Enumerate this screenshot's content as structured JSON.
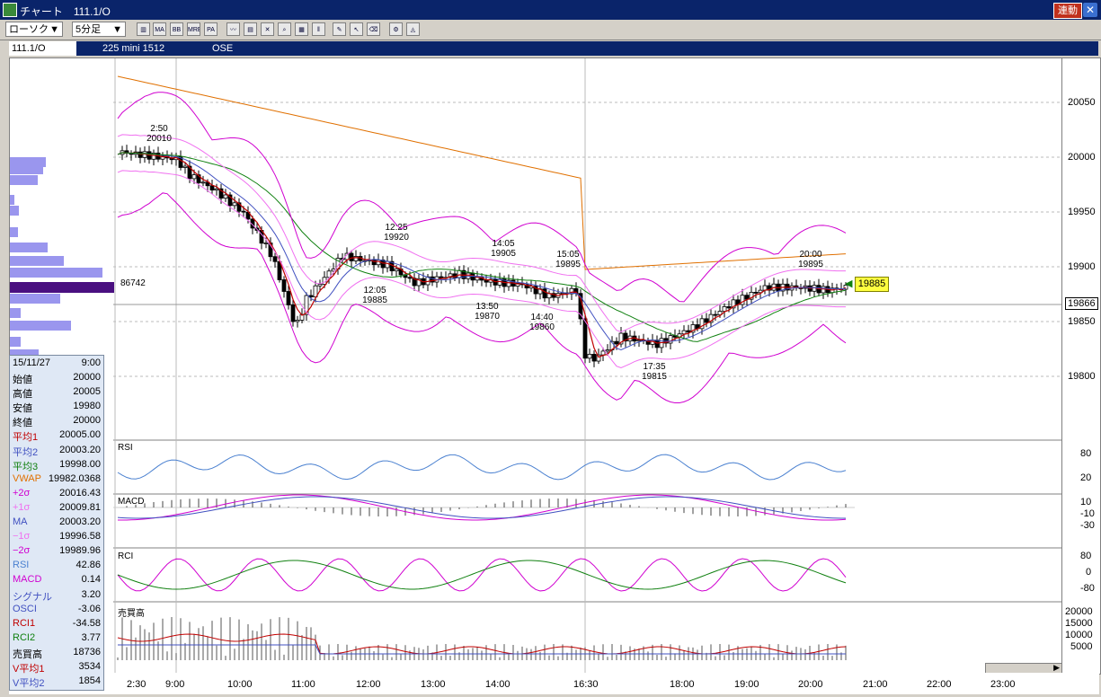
{
  "window": {
    "title": "チャート　111.1/O",
    "rendo_label": "連動",
    "close_label": "✕"
  },
  "toolbar": {
    "chart_type": "ローソク",
    "interval": "5分足",
    "arrow": "▼"
  },
  "infobar": {
    "code": "111.1/O",
    "name": "225 mini 1512",
    "exchange": "OSE"
  },
  "price_axis": {
    "ticks": [
      "20050",
      "20000",
      "19950",
      "19900",
      "19850",
      "19800"
    ],
    "current_price_badge": "19866",
    "last_price_tag": "19885"
  },
  "volume_profile_label": "86742",
  "annotations": [
    {
      "time": "2:50",
      "price": "20010"
    },
    {
      "time": "12:25",
      "price": "19920"
    },
    {
      "time": "14:05",
      "price": "19905"
    },
    {
      "time": "15:05",
      "price": "19895"
    },
    {
      "time": "20:00",
      "price": "19895"
    },
    {
      "time": "12:05",
      "price": "19885"
    },
    {
      "time": "13:50",
      "price": "19870"
    },
    {
      "time": "14:40",
      "price": "19860"
    },
    {
      "time": "17:35",
      "price": "19815"
    }
  ],
  "panels": {
    "rsi": {
      "label": "RSI",
      "ticks": [
        "80",
        "20"
      ]
    },
    "macd": {
      "label": "MACD",
      "ticks": [
        "10",
        "-10",
        "-30"
      ]
    },
    "rci": {
      "label": "RCI",
      "ticks": [
        "80",
        "0",
        "-80"
      ]
    },
    "volume": {
      "label": "売買高",
      "ticks": [
        "20000",
        "15000",
        "10000",
        "5000"
      ]
    }
  },
  "time_axis": [
    "2:30",
    "9:00",
    "10:00",
    "11:00",
    "12:00",
    "13:00",
    "14:00",
    "16:30",
    "18:00",
    "19:00",
    "20:00",
    "21:00",
    "22:00",
    "23:00"
  ],
  "info_panel": {
    "date": "15/11/27",
    "time": "9:00",
    "rows": [
      {
        "k": "始値",
        "v": "20000",
        "c": "#000000"
      },
      {
        "k": "高値",
        "v": "20005",
        "c": "#000000"
      },
      {
        "k": "安値",
        "v": "19980",
        "c": "#000000"
      },
      {
        "k": "終値",
        "v": "20000",
        "c": "#000000"
      },
      {
        "k": "平均1",
        "v": "20005.00",
        "c": "#c00000"
      },
      {
        "k": "平均2",
        "v": "20003.20",
        "c": "#4050c0"
      },
      {
        "k": "平均3",
        "v": "19998.00",
        "c": "#108010"
      },
      {
        "k": "VWAP",
        "v": "19982.0368",
        "c": "#e07000"
      },
      {
        "k": "+2σ",
        "v": "20016.43",
        "c": "#d000d0"
      },
      {
        "k": "+1σ",
        "v": "20009.81",
        "c": "#f070f0"
      },
      {
        "k": "MA",
        "v": "20003.20",
        "c": "#4050c0"
      },
      {
        "k": "−1σ",
        "v": "19996.58",
        "c": "#f070f0"
      },
      {
        "k": "−2σ",
        "v": "19989.96",
        "c": "#d000d0"
      },
      {
        "k": "RSI",
        "v": "42.86",
        "c": "#4a80d0"
      },
      {
        "k": "MACD",
        "v": "0.14",
        "c": "#d000d0"
      },
      {
        "k": "シグナル",
        "v": "3.20",
        "c": "#4050c0"
      },
      {
        "k": "OSCI",
        "v": "-3.06",
        "c": "#4050c0"
      },
      {
        "k": "RCI1",
        "v": "-34.58",
        "c": "#c00000"
      },
      {
        "k": "RCI2",
        "v": "3.77",
        "c": "#108010"
      },
      {
        "k": "売買高",
        "v": "18736",
        "c": "#000000"
      },
      {
        "k": "V平均1",
        "v": "3534",
        "c": "#c00000"
      },
      {
        "k": "V平均2",
        "v": "1854",
        "c": "#4050c0"
      }
    ]
  },
  "colors": {
    "title_bg": "#0a246a",
    "sma1": "#c00000",
    "sma2": "#4050c0",
    "sma3": "#108010",
    "vwap": "#e07000",
    "bb2": "#d000d0",
    "bb1": "#f070f0",
    "rsi": "#4a80d0",
    "profile": "#9a96ee",
    "profile_peak": "#4a1080"
  }
}
